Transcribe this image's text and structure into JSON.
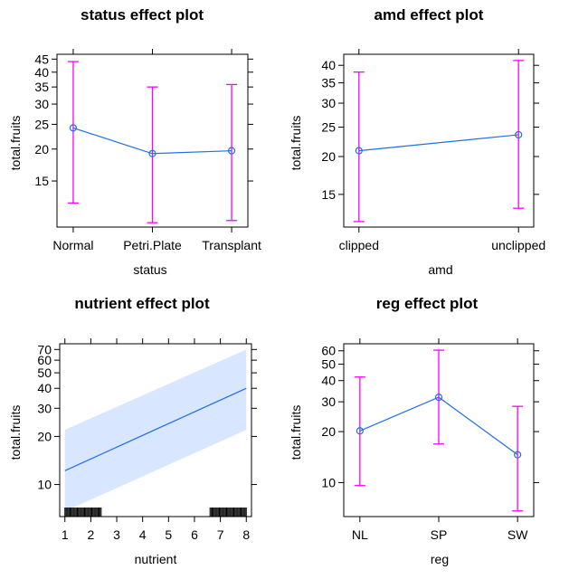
{
  "figure": {
    "type": "lattice effect plots"
  },
  "chart_data": [
    {
      "type": "line",
      "title": "status effect plot",
      "xlabel": "status",
      "ylabel": "total.fruits",
      "categories": [
        "Normal",
        "Petri.Plate",
        "Transplant"
      ],
      "values": [
        24.2,
        19.2,
        19.7
      ],
      "lower": [
        12.3,
        10.3,
        10.5
      ],
      "upper": [
        44,
        35,
        35.8
      ],
      "yticks": [
        15,
        20,
        25,
        30,
        35,
        40,
        45
      ],
      "ylim": [
        9.9,
        47
      ],
      "ylog": true,
      "line_color": "#1f6fe6",
      "ci_color": "#ff00ff"
    },
    {
      "type": "line",
      "title": "amd effect plot",
      "xlabel": "amd",
      "ylabel": "total.fruits",
      "categories": [
        "clipped",
        "unclipped"
      ],
      "values": [
        20.9,
        23.6
      ],
      "lower": [
        12.2,
        13.5
      ],
      "upper": [
        38,
        41.5
      ],
      "yticks": [
        15,
        20,
        25,
        30,
        35,
        40
      ],
      "ylim": [
        11.7,
        43.5
      ],
      "ylog": true,
      "line_color": "#1f6fe6",
      "ci_color": "#ff00ff"
    },
    {
      "type": "area",
      "title": "nutrient effect plot",
      "xlabel": "nutrient",
      "ylabel": "total.fruits",
      "x": [
        1,
        8
      ],
      "values": [
        12.2,
        40
      ],
      "lower": [
        6.8,
        22
      ],
      "upper": [
        22,
        70
      ],
      "xticks": [
        1,
        2,
        3,
        4,
        5,
        6,
        7,
        8
      ],
      "yticks": [
        10,
        20,
        30,
        40,
        50,
        60,
        70
      ],
      "xlim": [
        0.8,
        8.2
      ],
      "ylim": [
        6.3,
        76
      ],
      "ylog": true,
      "rug_low": [
        1,
        2.4
      ],
      "rug_high": [
        6.6,
        8
      ],
      "line_color": "#1f6fe6",
      "band_color": "#d8e6ff"
    },
    {
      "type": "line",
      "title": "reg effect plot",
      "xlabel": "reg",
      "ylabel": "total.fruits",
      "categories": [
        "NL",
        "SP",
        "SW"
      ],
      "values": [
        20.2,
        31.9,
        14.6
      ],
      "lower": [
        9.6,
        16.9,
        6.8
      ],
      "upper": [
        42,
        60.5,
        28.2
      ],
      "yticks": [
        10,
        20,
        30,
        40,
        50,
        60
      ],
      "ylim": [
        6.3,
        66
      ],
      "ylog": true,
      "line_color": "#1f6fe6",
      "ci_color": "#ff00ff"
    }
  ]
}
